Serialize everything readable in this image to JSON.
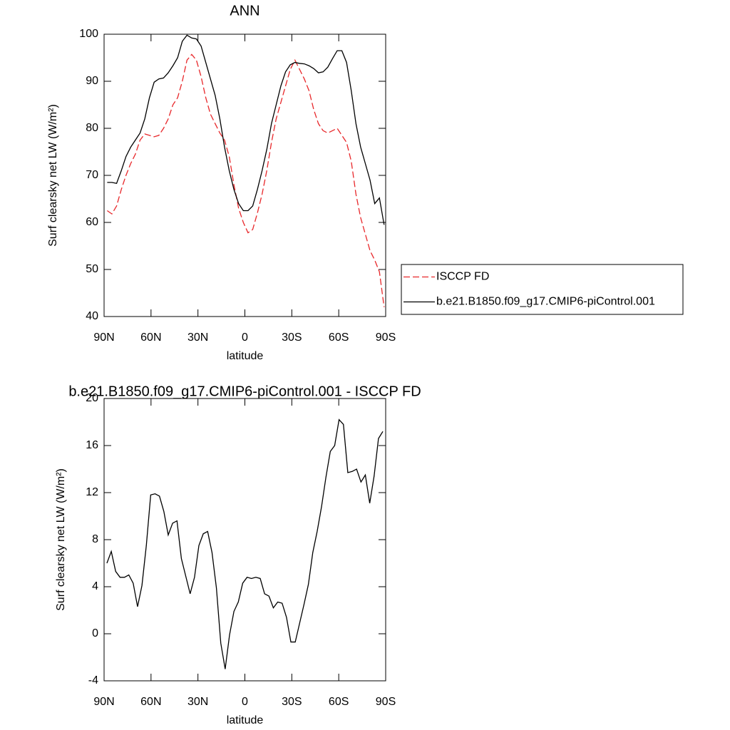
{
  "chart_data": [
    {
      "type": "line",
      "title": "ANN",
      "xlabel": "latitude",
      "ylabel": "Surf clearsky net LW (W/m²)",
      "x": [
        88,
        85,
        82,
        79,
        76,
        73,
        70,
        67,
        64,
        61,
        58,
        55,
        52,
        49,
        46,
        43,
        40,
        37,
        34,
        31,
        28,
        25,
        22,
        19,
        16,
        13,
        10,
        7,
        4,
        1,
        -2,
        -5,
        -8,
        -11,
        -14,
        -17,
        -20,
        -23,
        -26,
        -29,
        -32,
        -35,
        -38,
        -41,
        -44,
        -47,
        -50,
        -53,
        -56,
        -59,
        -62,
        -65,
        -68,
        -71,
        -74,
        -77,
        -80,
        -83,
        -86,
        -89
      ],
      "series": [
        {
          "name": "ISCCP FD",
          "color": "#e8272a",
          "line_style": "dashed",
          "values": [
            62.5,
            61.8,
            63.5,
            67,
            70,
            72.5,
            74.5,
            77.5,
            78.8,
            78.5,
            78.2,
            78.5,
            80,
            82,
            85,
            86.5,
            90,
            94.5,
            95.7,
            94.5,
            91,
            86.5,
            83,
            81,
            79,
            77.5,
            74,
            68,
            63,
            60,
            57.8,
            58.5,
            62,
            66,
            71,
            77,
            82,
            85.5,
            89,
            92.5,
            94.5,
            92.5,
            90.5,
            88,
            84,
            81,
            79.5,
            79,
            79.5,
            80,
            78.5,
            77,
            73,
            66,
            61,
            57.5,
            54,
            52,
            49.5,
            42
          ]
        },
        {
          "name": "b.e21.B1850.f09_g17.CMIP6-piControl.001",
          "color": "#000000",
          "line_style": "solid",
          "values": [
            68.5,
            68.5,
            68.3,
            71,
            74,
            76,
            77.5,
            79,
            82,
            86.5,
            89.8,
            90.5,
            90.7,
            91.8,
            93.3,
            95,
            98.5,
            99.8,
            99.2,
            99,
            97.5,
            94,
            90.5,
            87,
            82,
            76,
            71,
            67,
            64,
            62.5,
            62.5,
            63.5,
            67,
            71,
            75.5,
            81,
            85,
            89,
            92,
            93.5,
            94,
            93.8,
            93.7,
            93.3,
            92.7,
            91.8,
            92,
            93,
            94.8,
            96.5,
            96.5,
            94,
            88,
            81,
            76,
            72.5,
            69,
            64,
            65.2,
            59.5
          ]
        }
      ],
      "xlim": [
        90,
        -90
      ],
      "xticks": [
        {
          "value": 90,
          "label": "90N"
        },
        {
          "value": 60,
          "label": "60N"
        },
        {
          "value": 30,
          "label": "30N"
        },
        0,
        {
          "value": -30,
          "label": "30S"
        },
        {
          "value": -60,
          "label": "60S"
        },
        {
          "value": -90,
          "label": "90S"
        }
      ],
      "ylim": [
        40,
        100
      ],
      "yticks": [
        40,
        50,
        60,
        70,
        80,
        90,
        100
      ],
      "grid": false,
      "legend": "outside-right"
    },
    {
      "type": "line",
      "title": "b.e21.B1850.f09_g17.CMIP6-piControl.001 - ISCCP FD",
      "xlabel": "latitude",
      "ylabel": "Surf clearsky net LW (W/m²)",
      "x": [
        88.2,
        85.4,
        82.6,
        79.8,
        77.0,
        74.2,
        71.4,
        68.6,
        65.8,
        63.0,
        60.2,
        57.4,
        54.6,
        51.8,
        49.0,
        46.2,
        43.4,
        40.6,
        37.8,
        35.0,
        32.2,
        29.4,
        26.6,
        23.8,
        21.0,
        18.2,
        15.4,
        12.6,
        9.8,
        7.0,
        4.2,
        1.4,
        -1.4,
        -4.2,
        -7.0,
        -9.8,
        -12.6,
        -15.4,
        -18.2,
        -21.0,
        -23.8,
        -26.6,
        -29.4,
        -32.2,
        -35.0,
        -37.8,
        -40.6,
        -43.4,
        -46.2,
        -49.0,
        -51.8,
        -54.6,
        -57.4,
        -60.2,
        -63.0,
        -65.8,
        -68.6,
        -71.4,
        -74.2,
        -77.0,
        -79.8,
        -82.6,
        -85.4,
        -88.2
      ],
      "color": "#000000",
      "values": [
        6.0,
        7.0,
        5.3,
        4.8,
        4.8,
        5.0,
        4.3,
        2.3,
        4.1,
        7.5,
        11.8,
        11.9,
        11.7,
        10.4,
        8.4,
        9.4,
        9.6,
        6.4,
        4.9,
        3.4,
        4.8,
        7.5,
        8.5,
        8.7,
        6.9,
        3.9,
        -0.8,
        -3.0,
        -0.1,
        1.9,
        2.7,
        4.3,
        4.8,
        4.7,
        4.8,
        4.7,
        3.4,
        3.2,
        2.2,
        2.7,
        2.6,
        1.4,
        -0.7,
        -0.7,
        0.9,
        2.5,
        4.2,
        6.9,
        8.7,
        10.8,
        13.3,
        15.5,
        16.0,
        18.2,
        17.8,
        13.7,
        13.8,
        14.0,
        12.9,
        13.5,
        11.1,
        13.4,
        16.6,
        17.2
      ],
      "xlim": [
        90,
        -90
      ],
      "xticks": [
        {
          "value": 90,
          "label": "90N"
        },
        {
          "value": 60,
          "label": "60N"
        },
        {
          "value": 30,
          "label": "30N"
        },
        0,
        {
          "value": -30,
          "label": "30S"
        },
        {
          "value": -60,
          "label": "60S"
        },
        {
          "value": -90,
          "label": "90S"
        }
      ],
      "ylim": [
        -4,
        20
      ],
      "yticks": [
        -4,
        0,
        4,
        8,
        12,
        16,
        20
      ],
      "grid": false
    }
  ]
}
